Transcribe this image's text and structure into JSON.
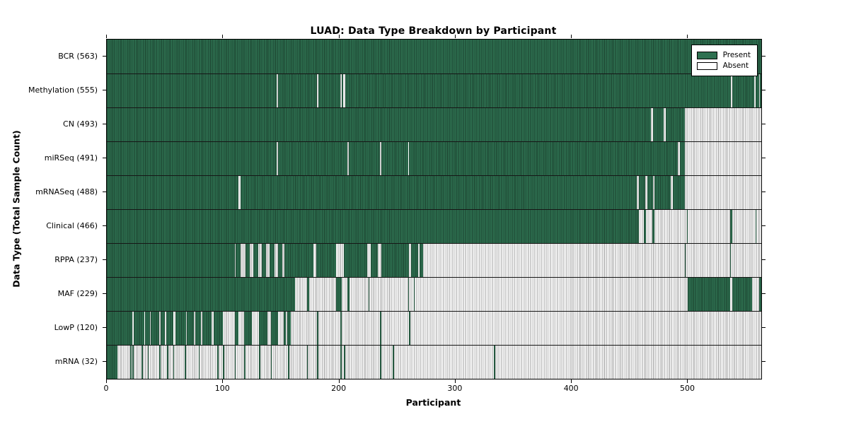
{
  "title": "LUAD: Data Type Breakdown by Participant",
  "xlabel": "Participant",
  "ylabel": "Data Type (Total Sample Count)",
  "legend": {
    "present_label": "Present",
    "absent_label": "Absent"
  },
  "colors": {
    "present": "#2e7050",
    "absent": "#ffffff",
    "edge": "#000000"
  },
  "x_ticks": [
    0,
    100,
    200,
    300,
    400,
    500
  ],
  "chart_data": {
    "type": "heatmap",
    "title": "LUAD: Data Type Breakdown by Participant",
    "xlabel": "Participant",
    "ylabel": "Data Type (Total Sample Count)",
    "legend": [
      "Present",
      "Absent"
    ],
    "legend_position": "upper right",
    "x_range": [
      0,
      563
    ],
    "x_tick_values": [
      0,
      100,
      200,
      300,
      400,
      500
    ],
    "value_encoding": {
      "present": "green filled cell",
      "absent": "white cell"
    },
    "rows": [
      {
        "name": "BCR",
        "label": "BCR (563)",
        "total": 563,
        "present_segments": [
          [
            0,
            563
          ]
        ]
      },
      {
        "name": "Methylation",
        "label": "Methylation (555)",
        "total": 555,
        "present_segments": [
          [
            0,
            146
          ],
          [
            147,
            181
          ],
          [
            182,
            201
          ],
          [
            202,
            203
          ],
          [
            205,
            537
          ],
          [
            538,
            557
          ],
          [
            558,
            561
          ],
          [
            562,
            563
          ]
        ]
      },
      {
        "name": "CN",
        "label": "CN (493)",
        "total": 493,
        "present_segments": [
          [
            0,
            468
          ],
          [
            470,
            479
          ],
          [
            481,
            497
          ]
        ]
      },
      {
        "name": "miRSeq",
        "label": "miRSeq (491)",
        "total": 491,
        "present_segments": [
          [
            0,
            146
          ],
          [
            147,
            207
          ],
          [
            208,
            235
          ],
          [
            236,
            259
          ],
          [
            260,
            491
          ],
          [
            493,
            497
          ]
        ]
      },
      {
        "name": "mRNASeq",
        "label": "mRNASeq (488)",
        "total": 488,
        "present_segments": [
          [
            0,
            113
          ],
          [
            115,
            456
          ],
          [
            458,
            463
          ],
          [
            465,
            470
          ],
          [
            471,
            485
          ],
          [
            487,
            497
          ]
        ]
      },
      {
        "name": "Clinical",
        "label": "Clinical (466)",
        "total": 466,
        "present_segments": [
          [
            0,
            458
          ],
          [
            462,
            464
          ],
          [
            469,
            471
          ],
          [
            499,
            500
          ],
          [
            536,
            538
          ],
          [
            558,
            559
          ]
        ]
      },
      {
        "name": "RPPA",
        "label": "RPPA (237)",
        "total": 237,
        "present_segments": [
          [
            0,
            110
          ],
          [
            111,
            115
          ],
          [
            119,
            123
          ],
          [
            126,
            130
          ],
          [
            133,
            137
          ],
          [
            140,
            144
          ],
          [
            147,
            151
          ],
          [
            153,
            178
          ],
          [
            180,
            197
          ],
          [
            204,
            224
          ],
          [
            227,
            233
          ],
          [
            236,
            260
          ],
          [
            262,
            268
          ],
          [
            269,
            272
          ],
          [
            497,
            498
          ],
          [
            536,
            537
          ]
        ]
      },
      {
        "name": "MAF",
        "label": "MAF (229)",
        "total": 229,
        "present_segments": [
          [
            0,
            162
          ],
          [
            172,
            174
          ],
          [
            197,
            202
          ],
          [
            207,
            209
          ],
          [
            225,
            226
          ],
          [
            259,
            260
          ],
          [
            264,
            265
          ],
          [
            500,
            536
          ],
          [
            538,
            555
          ],
          [
            561,
            563
          ]
        ]
      },
      {
        "name": "LowP",
        "label": "LowP (120)",
        "total": 120,
        "present_segments": [
          [
            0,
            22
          ],
          [
            23,
            32
          ],
          [
            33,
            37
          ],
          [
            38,
            45
          ],
          [
            46,
            50
          ],
          [
            51,
            57
          ],
          [
            59,
            68
          ],
          [
            69,
            75
          ],
          [
            76,
            81
          ],
          [
            82,
            90
          ],
          [
            92,
            100
          ],
          [
            110,
            113
          ],
          [
            118,
            125
          ],
          [
            131,
            138
          ],
          [
            141,
            147
          ],
          [
            152,
            154
          ],
          [
            155,
            158
          ],
          [
            181,
            182
          ],
          [
            201,
            202
          ],
          [
            235,
            236
          ],
          [
            260,
            261
          ]
        ]
      },
      {
        "name": "mRNA",
        "label": "mRNA (32)",
        "total": 32,
        "present_segments": [
          [
            0,
            9
          ],
          [
            20,
            21
          ],
          [
            22,
            23
          ],
          [
            30,
            31
          ],
          [
            35,
            36
          ],
          [
            45,
            46
          ],
          [
            52,
            53
          ],
          [
            57,
            58
          ],
          [
            67,
            68
          ],
          [
            79,
            80
          ],
          [
            95,
            96
          ],
          [
            100,
            101
          ],
          [
            110,
            111
          ],
          [
            118,
            119
          ],
          [
            131,
            132
          ],
          [
            141,
            142
          ],
          [
            156,
            157
          ],
          [
            172,
            173
          ],
          [
            181,
            182
          ],
          [
            201,
            202
          ],
          [
            204,
            205
          ],
          [
            235,
            236
          ],
          [
            246,
            247
          ],
          [
            333,
            334
          ]
        ]
      }
    ]
  }
}
